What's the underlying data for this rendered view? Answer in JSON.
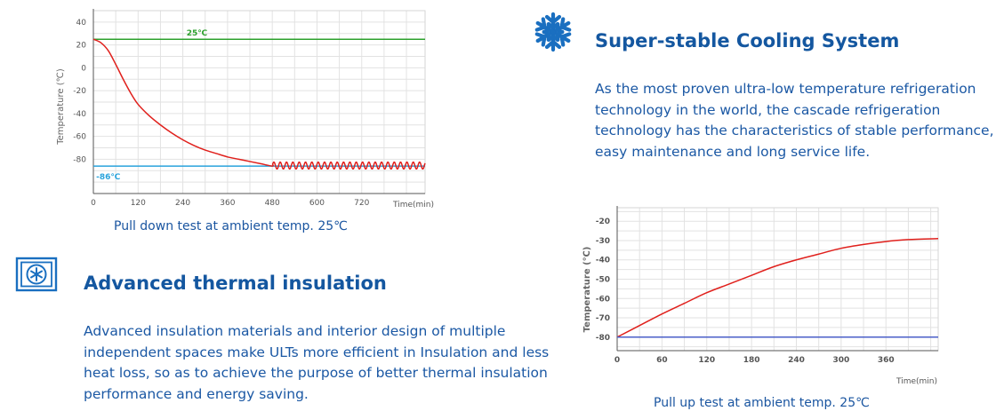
{
  "chart_data": [
    {
      "type": "line",
      "xlabel": "Time(min)",
      "ylabel": "Temperature (℃)",
      "xlim": [
        0,
        890
      ],
      "ylim": [
        -110,
        50
      ],
      "xticks": [
        "0",
        "120",
        "240",
        "360",
        "480",
        "600",
        "720"
      ],
      "yticks": [
        "40",
        "20",
        "0",
        "-20",
        "-40",
        "-60",
        "-80"
      ],
      "series": [
        {
          "name": "25℃",
          "color": "#2ca02c",
          "points": [
            [
              0,
              25
            ],
            [
              890,
              25
            ]
          ]
        },
        {
          "name": "-86℃",
          "color": "#29a3dc",
          "points": [
            [
              0,
              -86
            ],
            [
              890,
              -86
            ]
          ]
        },
        {
          "color": "#e0201c",
          "points": [
            [
              0,
              25
            ],
            [
              20,
              22
            ],
            [
              40,
              15
            ],
            [
              60,
              3
            ],
            [
              80,
              -10
            ],
            [
              100,
              -22
            ],
            [
              120,
              -32
            ],
            [
              150,
              -42
            ],
            [
              180,
              -50
            ],
            [
              210,
              -57
            ],
            [
              240,
              -63
            ],
            [
              270,
              -68
            ],
            [
              300,
              -72
            ],
            [
              330,
              -75
            ],
            [
              360,
              -78
            ],
            [
              390,
              -80
            ],
            [
              420,
              -82
            ],
            [
              450,
              -84
            ],
            [
              480,
              -86
            ]
          ],
          "oscillation": {
            "from": 480,
            "to": 890,
            "center": -85.5,
            "amplitude": 3,
            "period": 17
          }
        }
      ]
    },
    {
      "type": "line",
      "xlabel": "Time(min)",
      "ylabel": "Temperature (℃)",
      "xlim": [
        0,
        430
      ],
      "ylim": [
        -87,
        -13
      ],
      "xticks": [
        "0",
        "60",
        "120",
        "180",
        "240",
        "300",
        "360"
      ],
      "yticks": [
        "-20",
        "-30",
        "-40",
        "-50",
        "-60",
        "-70",
        "-80"
      ],
      "series": [
        {
          "color": "#e0201c",
          "points": [
            [
              0,
              -80
            ],
            [
              30,
              -74
            ],
            [
              60,
              -68
            ],
            [
              90,
              -62.5
            ],
            [
              120,
              -57
            ],
            [
              150,
              -52.5
            ],
            [
              180,
              -48
            ],
            [
              210,
              -43.5
            ],
            [
              240,
              -40
            ],
            [
              270,
              -37
            ],
            [
              300,
              -34
            ],
            [
              330,
              -32
            ],
            [
              360,
              -30.5
            ],
            [
              390,
              -29.5
            ],
            [
              430,
              -29
            ]
          ]
        },
        {
          "color": "#4a5fc8",
          "points": [
            [
              0,
              -80
            ],
            [
              430,
              -80
            ]
          ]
        }
      ]
    }
  ],
  "chart1": {
    "caption": "Pull down test at ambient temp. 25℃"
  },
  "chart2": {
    "caption": "Pull up test at ambient temp. 25℃"
  },
  "features": [
    {
      "icon": "snowflake-icon",
      "title": "Super-stable Cooling System",
      "text": "As the most proven ultra-low temperature refrigeration technology in the world, the cascade refrigeration technology has the characteristics of stable performance, easy maintenance and long service life."
    },
    {
      "icon": "insulated-freezer-icon",
      "title": "Advanced thermal insulation",
      "text": "Advanced insulation materials and interior design of multiple independent spaces make ULTs more efficient in Insulation and less heat loss, so as to achieve the purpose of better thermal insulation performance and energy saving."
    }
  ],
  "colors": {
    "accent": "#1457a0",
    "icon": "#1a6fc0"
  }
}
